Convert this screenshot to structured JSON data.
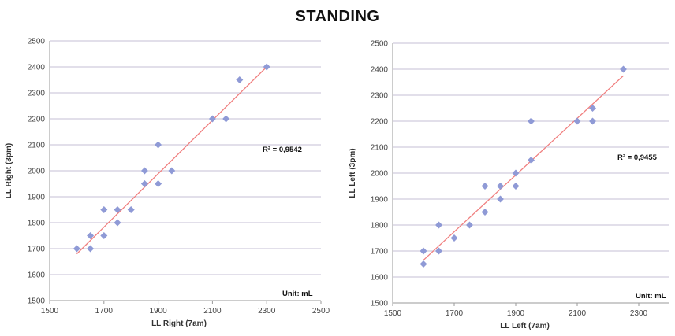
{
  "title": "STANDING",
  "chart_data": [
    {
      "type": "scatter",
      "xlabel": "LL Right (7am)",
      "ylabel": "LL Right  (3pm)",
      "xlim": [
        1500,
        2500
      ],
      "ylim": [
        1500,
        2500
      ],
      "xticks": [
        1500,
        1700,
        1900,
        2100,
        2300,
        2500
      ],
      "yticks": [
        1500,
        1600,
        1700,
        1800,
        1900,
        2000,
        2100,
        2200,
        2300,
        2400,
        2500
      ],
      "grid": "horizontal",
      "r2_label": "R² = 0,9542",
      "unit_label": "Unit: mL",
      "trendline": {
        "x": [
          1600,
          2300
        ],
        "y": [
          1680,
          2400
        ]
      },
      "marker_color": "#8f9ad6",
      "trend_color": "#f07f7f",
      "points": {
        "x": [
          1600,
          1650,
          1650,
          1700,
          1700,
          1750,
          1750,
          1800,
          1850,
          1850,
          1900,
          1900,
          1950,
          2100,
          2150,
          2200,
          2300
        ],
        "y": [
          1700,
          1700,
          1750,
          1850,
          1750,
          1850,
          1800,
          1850,
          1950,
          2000,
          2100,
          1950,
          2000,
          2200,
          2200,
          2350,
          2400
        ]
      }
    },
    {
      "type": "scatter",
      "xlabel": "LL Left (7am)",
      "ylabel": "LL Left  (3pm)",
      "xlim": [
        1500,
        2400
      ],
      "ylim": [
        1500,
        2500
      ],
      "xticks": [
        1500,
        1700,
        1900,
        2100,
        2300
      ],
      "yticks": [
        1500,
        1600,
        1700,
        1800,
        1900,
        2000,
        2100,
        2200,
        2300,
        2400,
        2500
      ],
      "grid": "horizontal",
      "r2_label": "R² = 0,9455",
      "unit_label": "Unit: mL",
      "trendline": {
        "x": [
          1600,
          2250
        ],
        "y": [
          1665,
          2375
        ]
      },
      "marker_color": "#8f9ad6",
      "trend_color": "#f07f7f",
      "points": {
        "x": [
          1600,
          1600,
          1650,
          1650,
          1700,
          1750,
          1800,
          1800,
          1850,
          1850,
          1900,
          1900,
          1950,
          1950,
          2100,
          2150,
          2150,
          2250
        ],
        "y": [
          1650,
          1700,
          1700,
          1800,
          1750,
          1800,
          1850,
          1950,
          1900,
          1950,
          1950,
          2000,
          2050,
          2200,
          2200,
          2200,
          2250,
          2400
        ]
      }
    }
  ]
}
